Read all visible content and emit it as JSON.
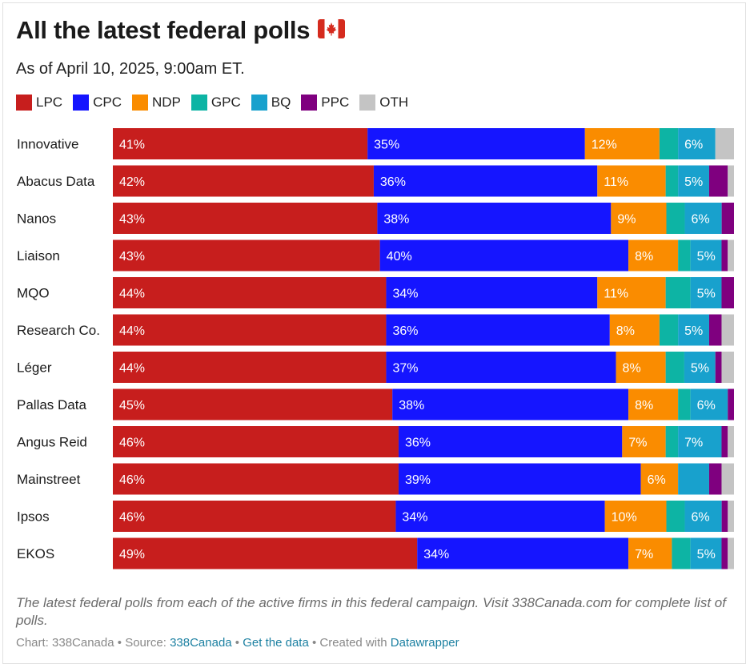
{
  "title": "All the latest federal polls",
  "flag_icon": "canada-flag-icon",
  "subtitle": "As of April 10, 2025, 9:00am ET.",
  "notes": "The latest federal polls from each of the active firms in this federal campaign. Visit 338Canada.com for complete list of polls.",
  "footer": {
    "chart_prefix": "Chart: 338Canada",
    "sep1": " • ",
    "source_prefix": "Source: ",
    "source_link": "338Canada",
    "sep2": " • ",
    "get_data": "Get the data",
    "sep3": " • ",
    "created_prefix": "Created with ",
    "created_link": "Datawrapper"
  },
  "chart_data": {
    "type": "bar",
    "orientation": "horizontal",
    "stacked": true,
    "value_unit": "%",
    "xlim": [
      0,
      100
    ],
    "legend_position": "top",
    "categories": [
      "Innovative",
      "Abacus Data",
      "Nanos",
      "Liaison",
      "MQO",
      "Research Co.",
      "Léger",
      "Pallas Data",
      "Angus Reid",
      "Mainstreet",
      "Ipsos",
      "EKOS"
    ],
    "series": [
      {
        "name": "LPC",
        "color": "#c71e1d",
        "values": [
          41,
          42,
          43,
          43,
          44,
          44,
          44,
          45,
          46,
          46,
          46,
          49
        ]
      },
      {
        "name": "CPC",
        "color": "#1515ff",
        "values": [
          35,
          36,
          38,
          40,
          34,
          36,
          37,
          38,
          36,
          39,
          34,
          34
        ]
      },
      {
        "name": "NDP",
        "color": "#fa8c00",
        "values": [
          12,
          11,
          9,
          8,
          11,
          8,
          8,
          8,
          7,
          6,
          10,
          7
        ]
      },
      {
        "name": "GPC",
        "color": "#0db4a4",
        "values": [
          3,
          2,
          3,
          2,
          4,
          3,
          3,
          2,
          2,
          0,
          3,
          3
        ]
      },
      {
        "name": "BQ",
        "color": "#18a1cd",
        "values": [
          6,
          5,
          6,
          5,
          5,
          5,
          5,
          6,
          7,
          5,
          6,
          5
        ]
      },
      {
        "name": "PPC",
        "color": "#7f007f",
        "values": [
          0,
          3,
          2,
          1,
          2,
          2,
          1,
          1,
          1,
          2,
          1,
          1
        ]
      },
      {
        "name": "OTH",
        "color": "#c4c4c4",
        "values": [
          3,
          1,
          0,
          1,
          0,
          2,
          2,
          0,
          1,
          2,
          1,
          1
        ]
      }
    ],
    "data_labels": [
      [
        "41%",
        "35%",
        "12%",
        "",
        "6%",
        "",
        ""
      ],
      [
        "42%",
        "36%",
        "11%",
        "",
        "5%",
        "",
        ""
      ],
      [
        "43%",
        "38%",
        "9%",
        "",
        "6%",
        "",
        ""
      ],
      [
        "43%",
        "40%",
        "8%",
        "",
        "5%",
        "",
        ""
      ],
      [
        "44%",
        "34%",
        "11%",
        "",
        "5%",
        "",
        ""
      ],
      [
        "44%",
        "36%",
        "8%",
        "",
        "5%",
        "",
        ""
      ],
      [
        "44%",
        "37%",
        "8%",
        "",
        "5%",
        "",
        ""
      ],
      [
        "45%",
        "38%",
        "8%",
        "",
        "6%",
        "",
        ""
      ],
      [
        "46%",
        "36%",
        "7%",
        "",
        "7%",
        "",
        ""
      ],
      [
        "46%",
        "39%",
        "6%",
        "",
        "",
        "",
        ""
      ],
      [
        "46%",
        "34%",
        "10%",
        "",
        "6%",
        "",
        ""
      ],
      [
        "49%",
        "34%",
        "7%",
        "",
        "5%",
        "",
        ""
      ]
    ]
  }
}
